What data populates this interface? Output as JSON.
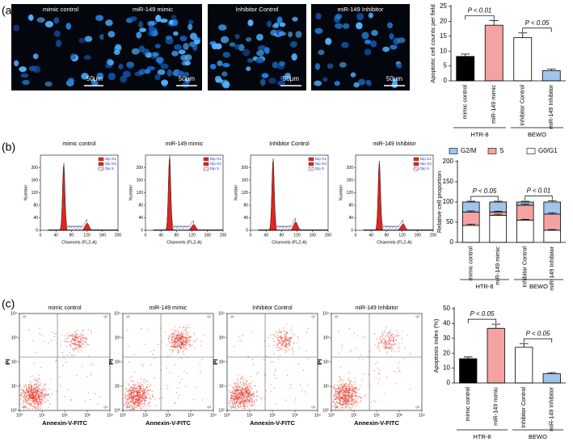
{
  "panel_labels": [
    "(a)",
    "(b)",
    "(c)"
  ],
  "microscopy": {
    "titles": [
      "mimic control",
      "miR-149 mimic",
      "Inhibitor Control",
      "miR-149 Inhibitor"
    ],
    "scale_bar": "50μm"
  },
  "cell_cycle_histograms": {
    "titles": [
      "mimic control",
      "miR-149 mimic",
      "Inhibitor Control",
      "miR-149 Inhibitor"
    ],
    "xlabel": "Channels (FL2-A)",
    "ylabel": "Number",
    "xlim": [
      0,
      200
    ],
    "ylim": [
      0,
      240
    ],
    "xticks": [
      0,
      40,
      80,
      120,
      160,
      200
    ],
    "yticks": [
      0,
      40,
      80,
      120,
      160,
      200
    ],
    "legend": [
      "Dip G1",
      "Dip G2",
      "Dip S"
    ]
  },
  "flow_scatter": {
    "titles": [
      "mimic control",
      "miR-149 mimic",
      "Inhibitor Control",
      "miR-149 Inhibitor"
    ],
    "xlabel": "Annexin-V-FITC",
    "ylabel": "PI",
    "log": true,
    "lim": [
      1,
      10000
    ],
    "ticks": [
      {
        "value": 1,
        "label": "10⁰"
      },
      {
        "value": 10,
        "label": "10¹"
      },
      {
        "value": 100,
        "label": "10²"
      },
      {
        "value": 1000,
        "label": "10³"
      },
      {
        "value": 10000,
        "label": "10⁴"
      }
    ],
    "quadrants": [
      "Q1",
      "Q2",
      "Q3",
      "Q4"
    ]
  },
  "chart_data": [
    {
      "type": "bar",
      "ylabel": "Apoptotic cell counts per field",
      "categories": [
        "mimic control",
        "miR-149 mimic",
        "Inhibitor Control",
        "miR-149 Inhibitor"
      ],
      "values": [
        8.2,
        18.7,
        14.5,
        3.4
      ],
      "errors": [
        0.8,
        1.6,
        1.6,
        0.5
      ],
      "colors": [
        "#000000",
        "#f4a3a3",
        "#ffffff",
        "#9fc5e8"
      ],
      "groups": [
        "HTR-8",
        "BEWO"
      ],
      "annotations": [
        "P < 0.01",
        "P < 0.05"
      ],
      "ylim": [
        0,
        25
      ],
      "yticks": [
        0,
        5,
        10,
        15,
        20,
        25
      ]
    },
    {
      "type": "stacked_bar",
      "ylabel": "Relative cell proportion",
      "categories": [
        "mimic control",
        "miR-149 mimic",
        "Inhibitor Control",
        "miR-149 Inhibitor"
      ],
      "series": [
        {
          "name": "G0/G1",
          "color": "#ffffff",
          "values": [
            42,
            67,
            55,
            30
          ],
          "errors": [
            3,
            3,
            2,
            2
          ]
        },
        {
          "name": "S",
          "color": "#f4a3a3",
          "values": [
            33,
            8,
            37,
            40
          ],
          "errors": [
            3,
            2,
            3,
            3
          ]
        },
        {
          "name": "G2/M",
          "color": "#9fc5e8",
          "values": [
            25,
            25,
            8,
            30
          ],
          "errors": [
            2,
            2,
            2,
            3
          ]
        }
      ],
      "groups": [
        "HTR-8",
        "BEWO"
      ],
      "annotations": [
        "P < 0.05",
        "P < 0.01"
      ],
      "ylim": [
        0,
        200
      ],
      "yticks": [
        0,
        50,
        100,
        150,
        200
      ]
    },
    {
      "type": "bar",
      "ylabel": "Apoptosis index (%)",
      "categories": [
        "mimic control",
        "miR-149 mimic",
        "Inhibitor Control",
        "miR-149 Inhibitor"
      ],
      "values": [
        16.3,
        36.8,
        24,
        6.2
      ],
      "errors": [
        1.2,
        2.8,
        2.5,
        0.8
      ],
      "colors": [
        "#000000",
        "#f4a3a3",
        "#ffffff",
        "#9fc5e8"
      ],
      "groups": [
        "HTR-8",
        "BEWO"
      ],
      "annotations": [
        "P < 0.05",
        "P < 0.05"
      ],
      "ylim": [
        0,
        50
      ],
      "yticks": [
        0,
        10,
        20,
        30,
        40,
        50
      ]
    }
  ]
}
